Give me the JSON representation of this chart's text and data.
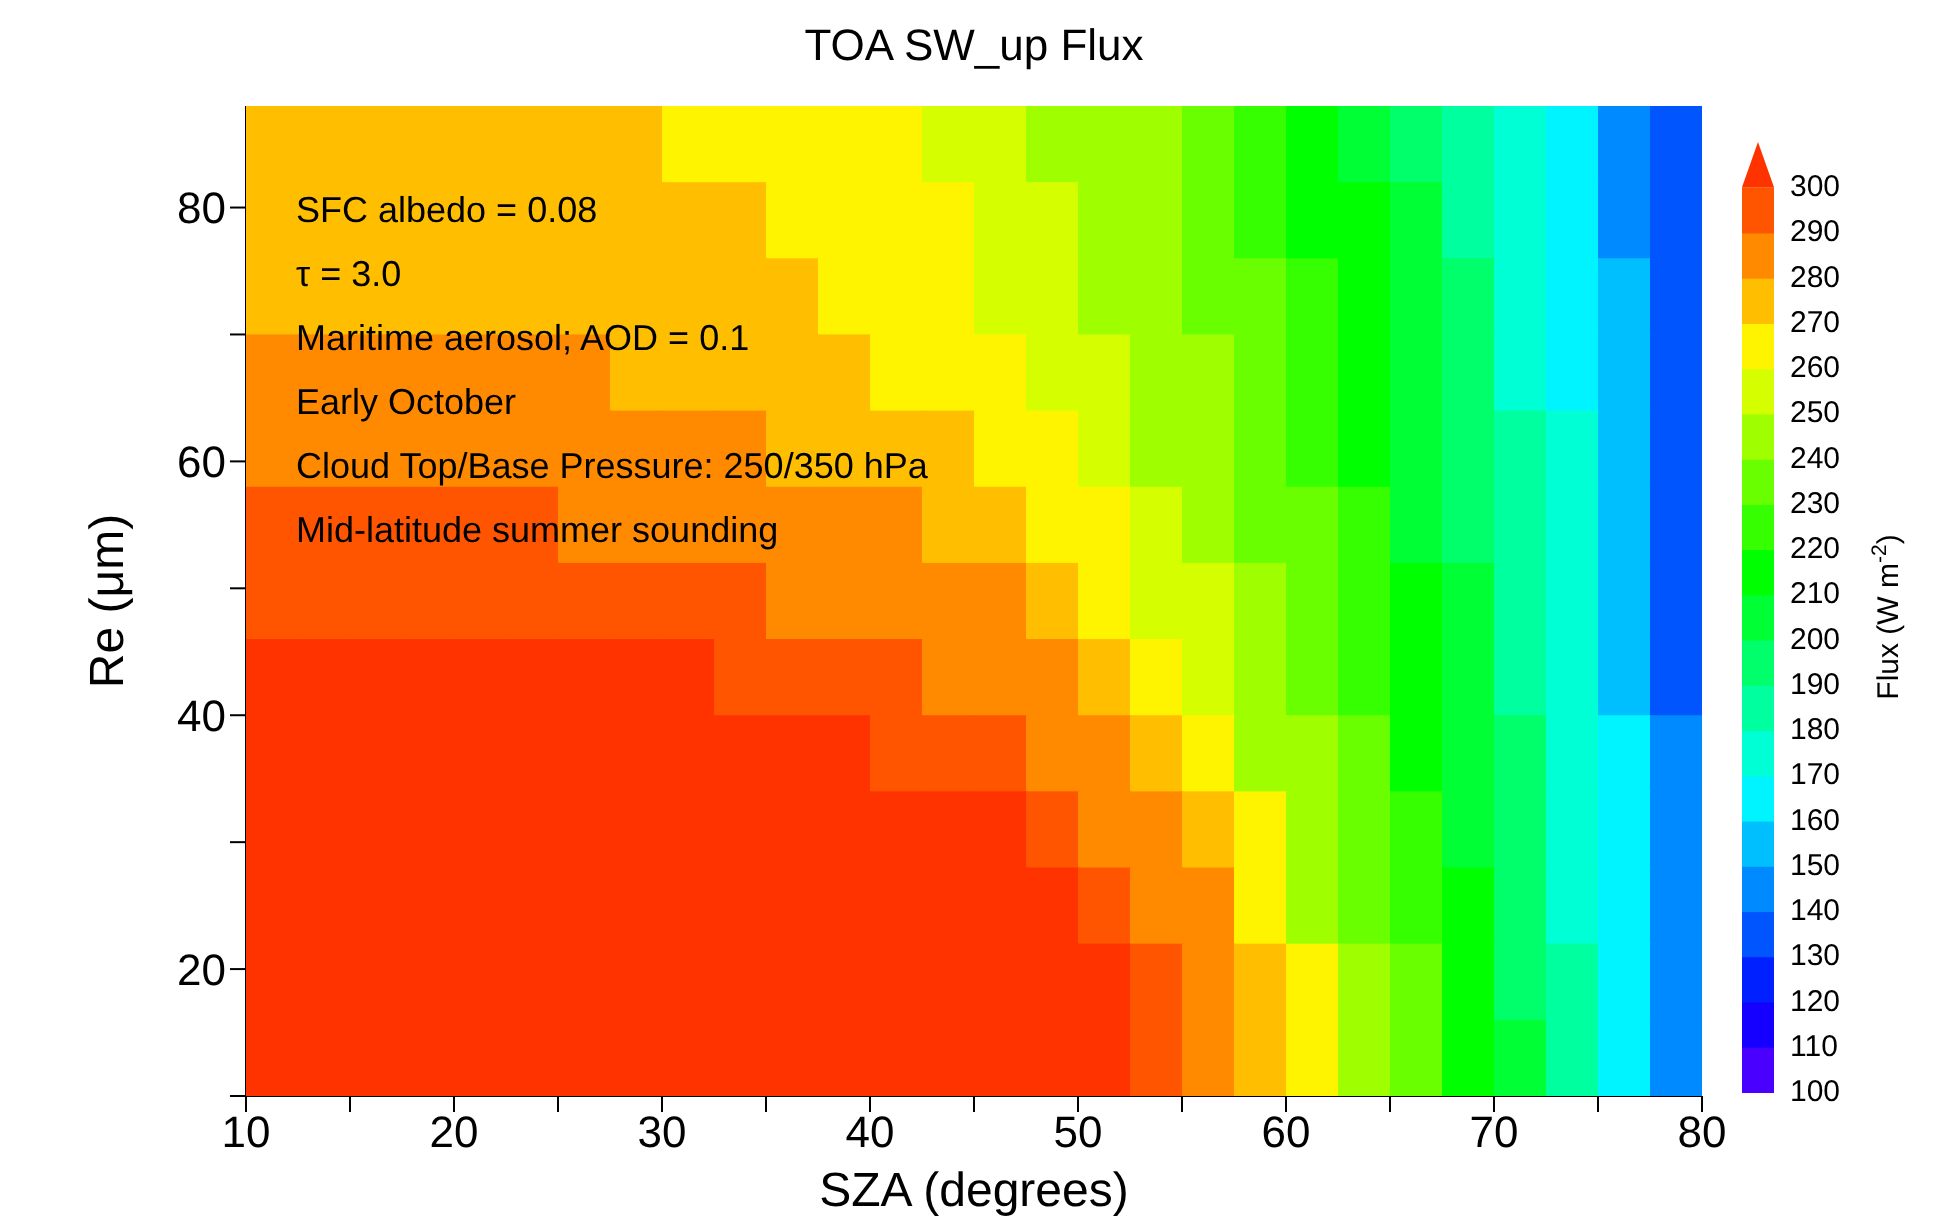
{
  "chart_data": {
    "type": "heatmap",
    "title": "TOA SW_up Flux",
    "xlabel": "SZA (degrees)",
    "ylabel": "Re (μm)",
    "clabel": "Flux (W m$^{-2}$)",
    "annotations": [
      "SFC albedo = 0.08",
      "τ = 3.0",
      "Maritime aerosol; AOD = 0.1",
      "Early October",
      "Cloud Top/Base Pressure: 250/350 hPa",
      "Mid-latitude summer sounding"
    ],
    "xlim": [
      10,
      80
    ],
    "ylim": [
      10,
      88
    ],
    "xticks": [
      10,
      {
        "value": 15,
        "label": null
      },
      20,
      {
        "value": 25,
        "label": null
      },
      30,
      {
        "value": 35,
        "label": null
      },
      40,
      {
        "value": 45,
        "label": null
      },
      50,
      {
        "value": 55,
        "label": null
      },
      60,
      {
        "value": 65,
        "label": null
      },
      70,
      {
        "value": 75,
        "label": null
      },
      80
    ],
    "yticks": [
      {
        "value": 10,
        "label": null
      },
      20,
      {
        "value": 30,
        "label": null
      },
      40,
      {
        "value": 50,
        "label": null
      },
      60,
      {
        "value": 70,
        "label": null
      },
      80
    ],
    "clim": [
      100,
      310
    ],
    "cticks": [
      100,
      110,
      120,
      130,
      140,
      150,
      160,
      170,
      180,
      190,
      200,
      210,
      220,
      230,
      240,
      250,
      260,
      270,
      280,
      290,
      300
    ],
    "cells": [
      [
        275,
        275,
        275,
        275,
        275,
        275,
        275,
        275,
        265,
        265,
        265,
        265,
        265,
        255,
        255,
        245,
        245,
        245,
        235,
        225,
        215,
        205,
        195,
        185,
        175,
        165,
        145,
        135
      ],
      [
        275,
        275,
        275,
        275,
        275,
        275,
        275,
        275,
        275,
        275,
        265,
        265,
        265,
        265,
        255,
        255,
        245,
        245,
        235,
        225,
        215,
        215,
        205,
        185,
        175,
        165,
        145,
        135
      ],
      [
        275,
        275,
        275,
        275,
        275,
        275,
        275,
        275,
        275,
        275,
        275,
        265,
        265,
        265,
        255,
        255,
        245,
        245,
        235,
        235,
        225,
        215,
        205,
        195,
        175,
        165,
        155,
        135
      ],
      [
        285,
        285,
        285,
        285,
        285,
        285,
        285,
        275,
        275,
        275,
        275,
        275,
        265,
        265,
        265,
        255,
        255,
        245,
        245,
        235,
        225,
        215,
        205,
        195,
        175,
        165,
        155,
        135
      ],
      [
        285,
        285,
        285,
        285,
        285,
        285,
        285,
        285,
        285,
        285,
        275,
        275,
        275,
        275,
        265,
        265,
        255,
        245,
        245,
        235,
        225,
        215,
        205,
        195,
        185,
        175,
        155,
        135
      ],
      [
        295,
        295,
        295,
        295,
        295,
        295,
        285,
        285,
        285,
        285,
        285,
        285,
        285,
        275,
        275,
        265,
        265,
        255,
        245,
        235,
        235,
        225,
        205,
        195,
        185,
        175,
        155,
        135
      ],
      [
        295,
        295,
        295,
        295,
        295,
        295,
        295,
        295,
        295,
        295,
        285,
        285,
        285,
        285,
        285,
        275,
        265,
        255,
        255,
        245,
        235,
        225,
        215,
        205,
        185,
        175,
        155,
        135
      ],
      [
        305,
        305,
        305,
        305,
        305,
        305,
        305,
        305,
        305,
        295,
        295,
        295,
        295,
        285,
        285,
        285,
        275,
        265,
        255,
        245,
        235,
        225,
        215,
        205,
        185,
        175,
        155,
        135
      ],
      [
        305,
        305,
        305,
        305,
        305,
        305,
        305,
        305,
        305,
        305,
        305,
        305,
        295,
        295,
        295,
        285,
        285,
        275,
        265,
        245,
        245,
        235,
        215,
        205,
        195,
        175,
        165,
        145
      ],
      [
        305,
        305,
        305,
        305,
        305,
        305,
        305,
        305,
        305,
        305,
        305,
        305,
        305,
        305,
        305,
        295,
        285,
        285,
        275,
        265,
        245,
        235,
        225,
        205,
        195,
        175,
        165,
        145
      ],
      [
        305,
        305,
        305,
        305,
        305,
        305,
        305,
        305,
        305,
        305,
        305,
        305,
        305,
        305,
        305,
        305,
        295,
        285,
        285,
        265,
        245,
        235,
        225,
        215,
        195,
        175,
        165,
        145
      ],
      [
        305,
        305,
        305,
        305,
        305,
        305,
        305,
        305,
        305,
        305,
        305,
        305,
        305,
        305,
        305,
        305,
        305,
        295,
        285,
        275,
        265,
        245,
        235,
        215,
        195,
        185,
        165,
        145
      ],
      [
        305,
        305,
        305,
        305,
        305,
        305,
        305,
        305,
        305,
        305,
        305,
        305,
        305,
        305,
        305,
        305,
        305,
        295,
        285,
        275,
        265,
        245,
        235,
        215,
        205,
        185,
        165,
        145
      ]
    ]
  }
}
